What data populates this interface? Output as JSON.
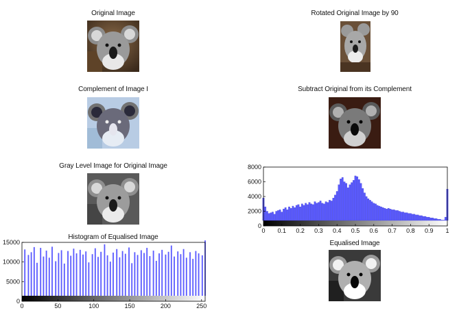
{
  "panels": {
    "original": {
      "title": "Original Image"
    },
    "rotated": {
      "title": "Rotated Original Image by 90"
    },
    "complement": {
      "title": "Complement of Image I"
    },
    "subtract": {
      "title": "Subtract Original from its Complement"
    },
    "gray": {
      "title": "Gray Level Image for Original Image"
    },
    "hist_eq": {
      "title": "Histogram of Equalised Image"
    },
    "equalised": {
      "title": "Equalised Image"
    }
  },
  "chart_data": [
    {
      "type": "bar",
      "title": "Histogram of Equalised Image",
      "xlabel": "",
      "ylabel": "",
      "xlim": [
        0,
        255
      ],
      "ylim": [
        0,
        15000
      ],
      "xticks": [
        "0",
        "50",
        "100",
        "150",
        "200",
        "250"
      ],
      "yticks": [
        "0",
        "5000",
        "10000",
        "15000"
      ],
      "x": [
        4,
        9,
        13,
        17,
        21,
        26,
        30,
        34,
        38,
        42,
        47,
        51,
        55,
        59,
        64,
        68,
        72,
        76,
        81,
        85,
        89,
        93,
        98,
        102,
        106,
        110,
        115,
        119,
        123,
        127,
        132,
        136,
        140,
        144,
        149,
        153,
        157,
        161,
        166,
        170,
        174,
        178,
        183,
        187,
        191,
        195,
        200,
        204,
        208,
        212,
        217,
        221,
        225,
        229,
        234,
        238,
        242,
        246,
        251,
        255
      ],
      "values": [
        13200,
        11800,
        12500,
        13800,
        9800,
        13600,
        11400,
        12900,
        11100,
        13900,
        10200,
        12300,
        13000,
        9600,
        12800,
        11600,
        13400,
        12200,
        13100,
        11900,
        12700,
        9900,
        12000,
        13500,
        11300,
        12600,
        14500,
        11700,
        10100,
        12400,
        13300,
        11200,
        12800,
        12100,
        13700,
        9700,
        12500,
        11800,
        13000,
        12300,
        13600,
        11500,
        12900,
        10300,
        12200,
        13100,
        11900,
        12600,
        14200,
        11400,
        12700,
        12000,
        13300,
        11100,
        12500,
        10800,
        12800,
        12200,
        11700,
        15500
      ],
      "color": "#5a5aff"
    },
    {
      "type": "bar",
      "title": "",
      "xlabel": "",
      "ylabel": "",
      "xlim": [
        0,
        1
      ],
      "ylim": [
        0,
        8000
      ],
      "xticks": [
        "0",
        "0.1",
        "0.2",
        "0.3",
        "0.4",
        "0.5",
        "0.6",
        "0.7",
        "0.8",
        "0.9",
        "1"
      ],
      "yticks": [
        "0",
        "2000",
        "4000",
        "6000",
        "8000"
      ],
      "x": [
        0.0,
        0.01,
        0.02,
        0.03,
        0.04,
        0.05,
        0.06,
        0.07,
        0.08,
        0.09,
        0.1,
        0.11,
        0.12,
        0.13,
        0.14,
        0.15,
        0.16,
        0.17,
        0.18,
        0.19,
        0.2,
        0.21,
        0.22,
        0.23,
        0.24,
        0.25,
        0.26,
        0.27,
        0.28,
        0.29,
        0.3,
        0.31,
        0.32,
        0.33,
        0.34,
        0.35,
        0.36,
        0.37,
        0.38,
        0.39,
        0.4,
        0.41,
        0.42,
        0.43,
        0.44,
        0.45,
        0.46,
        0.47,
        0.48,
        0.49,
        0.5,
        0.51,
        0.52,
        0.53,
        0.54,
        0.55,
        0.56,
        0.57,
        0.58,
        0.59,
        0.6,
        0.61,
        0.62,
        0.63,
        0.64,
        0.65,
        0.66,
        0.67,
        0.68,
        0.69,
        0.7,
        0.71,
        0.72,
        0.73,
        0.74,
        0.75,
        0.76,
        0.77,
        0.78,
        0.79,
        0.8,
        0.81,
        0.82,
        0.83,
        0.84,
        0.85,
        0.86,
        0.87,
        0.88,
        0.89,
        0.9,
        0.91,
        0.92,
        0.93,
        0.94,
        0.95,
        0.96,
        0.97,
        0.98,
        0.99,
        1.0
      ],
      "values": [
        3800,
        2600,
        2000,
        1700,
        1800,
        1900,
        1600,
        2000,
        2100,
        2200,
        1900,
        2300,
        2500,
        2200,
        2600,
        2400,
        2700,
        2500,
        2800,
        2900,
        2600,
        3000,
        2800,
        3100,
        2900,
        3200,
        3000,
        2900,
        3300,
        3100,
        3200,
        3400,
        3100,
        3000,
        3300,
        3200,
        3500,
        3400,
        3800,
        4200,
        4700,
        5600,
        6400,
        6600,
        6000,
        5800,
        5200,
        5600,
        5900,
        6200,
        6800,
        6700,
        6300,
        5800,
        5100,
        4500,
        4000,
        3700,
        3500,
        3300,
        3100,
        3000,
        2800,
        2700,
        2600,
        2500,
        2400,
        2300,
        2400,
        2300,
        2200,
        2200,
        2100,
        2100,
        2000,
        1900,
        1900,
        1800,
        1800,
        1700,
        1700,
        1600,
        1600,
        1500,
        1500,
        1400,
        1400,
        1300,
        1300,
        1200,
        1200,
        1100,
        1100,
        1000,
        1000,
        900,
        900,
        800,
        800,
        1200,
        5000
      ],
      "color": "#5a5aff"
    }
  ]
}
